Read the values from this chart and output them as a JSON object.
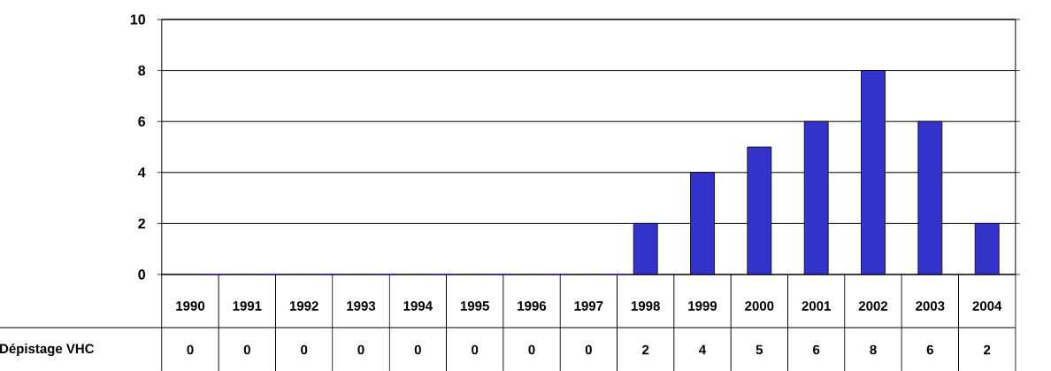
{
  "chart_data": {
    "type": "bar",
    "categories": [
      "1990",
      "1991",
      "1992",
      "1993",
      "1994",
      "1995",
      "1996",
      "1997",
      "1998",
      "1999",
      "2000",
      "2001",
      "2002",
      "2003",
      "2004"
    ],
    "series": [
      {
        "name": "Dépistage VHC",
        "color": "#3333cc",
        "values": [
          0,
          0,
          0,
          0,
          0,
          0,
          0,
          0,
          2,
          4,
          5,
          6,
          8,
          6,
          2
        ]
      }
    ],
    "ylim": [
      0,
      10
    ],
    "yticks": [
      0,
      2,
      4,
      6,
      8,
      10
    ],
    "grid": "y",
    "legend": "bottom left",
    "data_labels": true
  }
}
